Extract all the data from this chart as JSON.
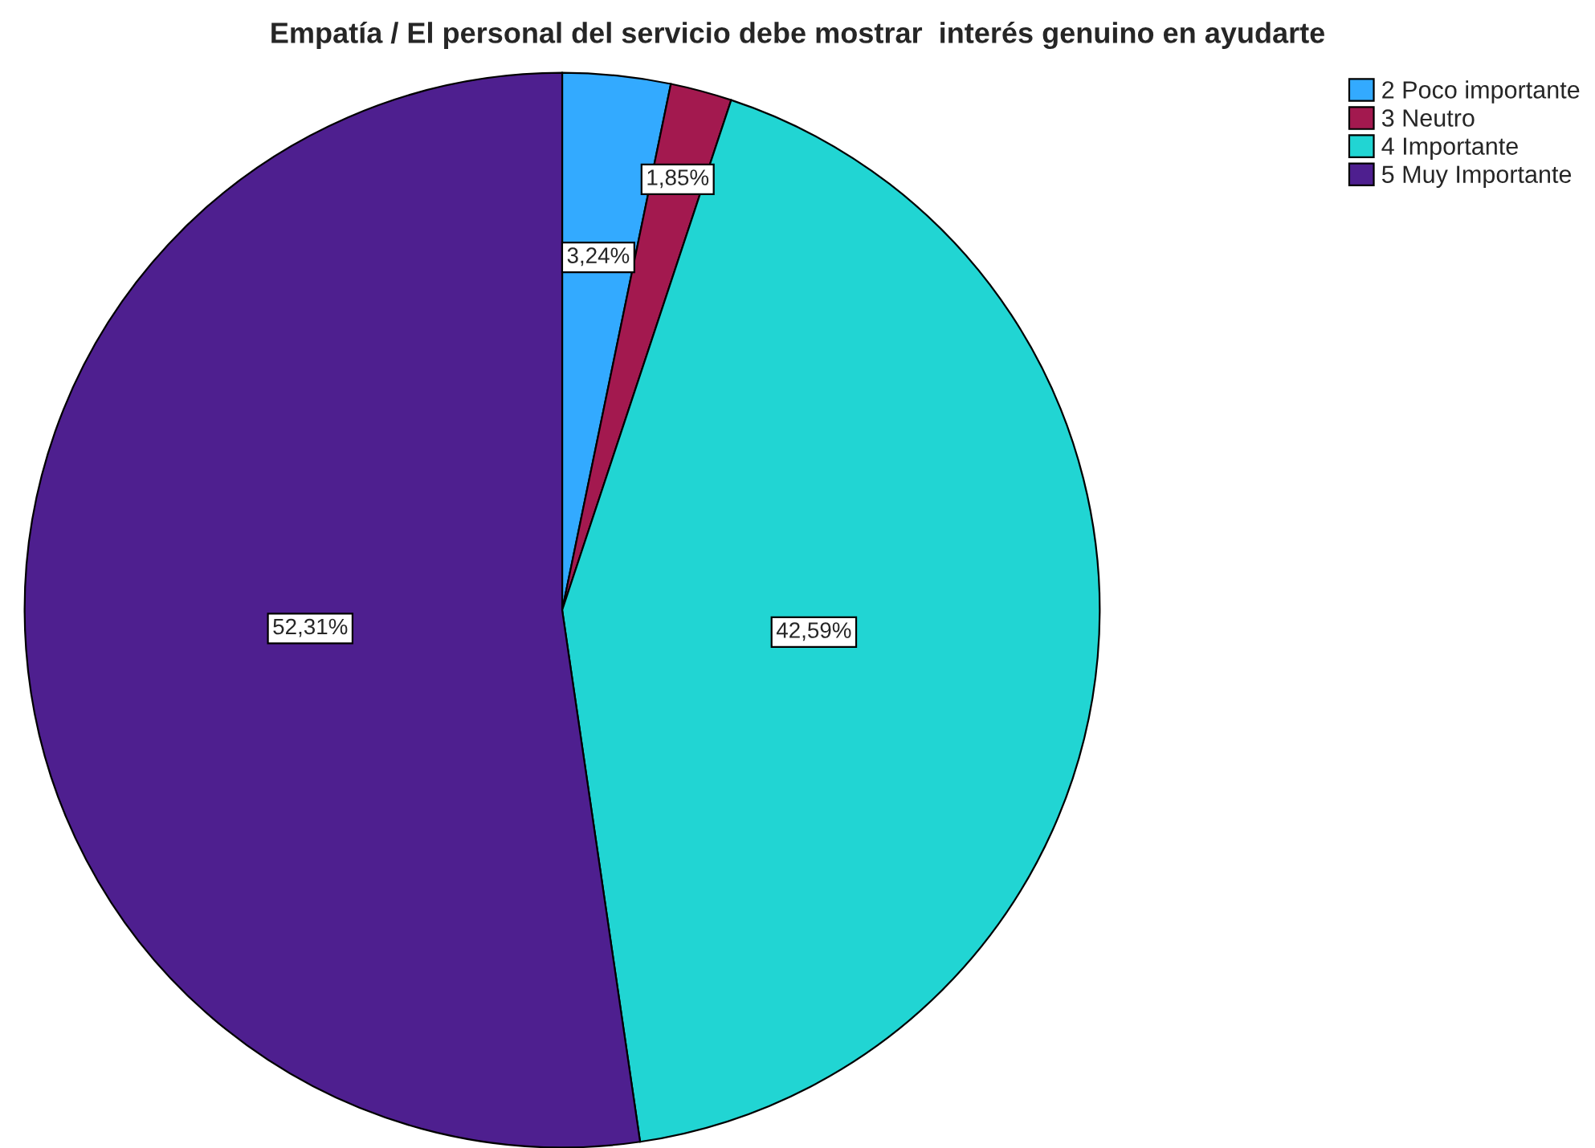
{
  "chart_data": {
    "type": "pie",
    "title": "Empatía / El personal del servicio debe mostrar  interés genuino en ayudarte",
    "categories": [
      "2 Poco importante",
      "3 Neutro",
      "4 Importante",
      "5 Muy Importante"
    ],
    "values": [
      3.24,
      1.85,
      42.59,
      52.31
    ],
    "colors": [
      "#33aaff",
      "#a3194f",
      "#21d5d3",
      "#4e1f8f"
    ],
    "value_labels": [
      "3,24%",
      "1,85%",
      "42,59%",
      "52,31%"
    ],
    "legend": "top right"
  }
}
